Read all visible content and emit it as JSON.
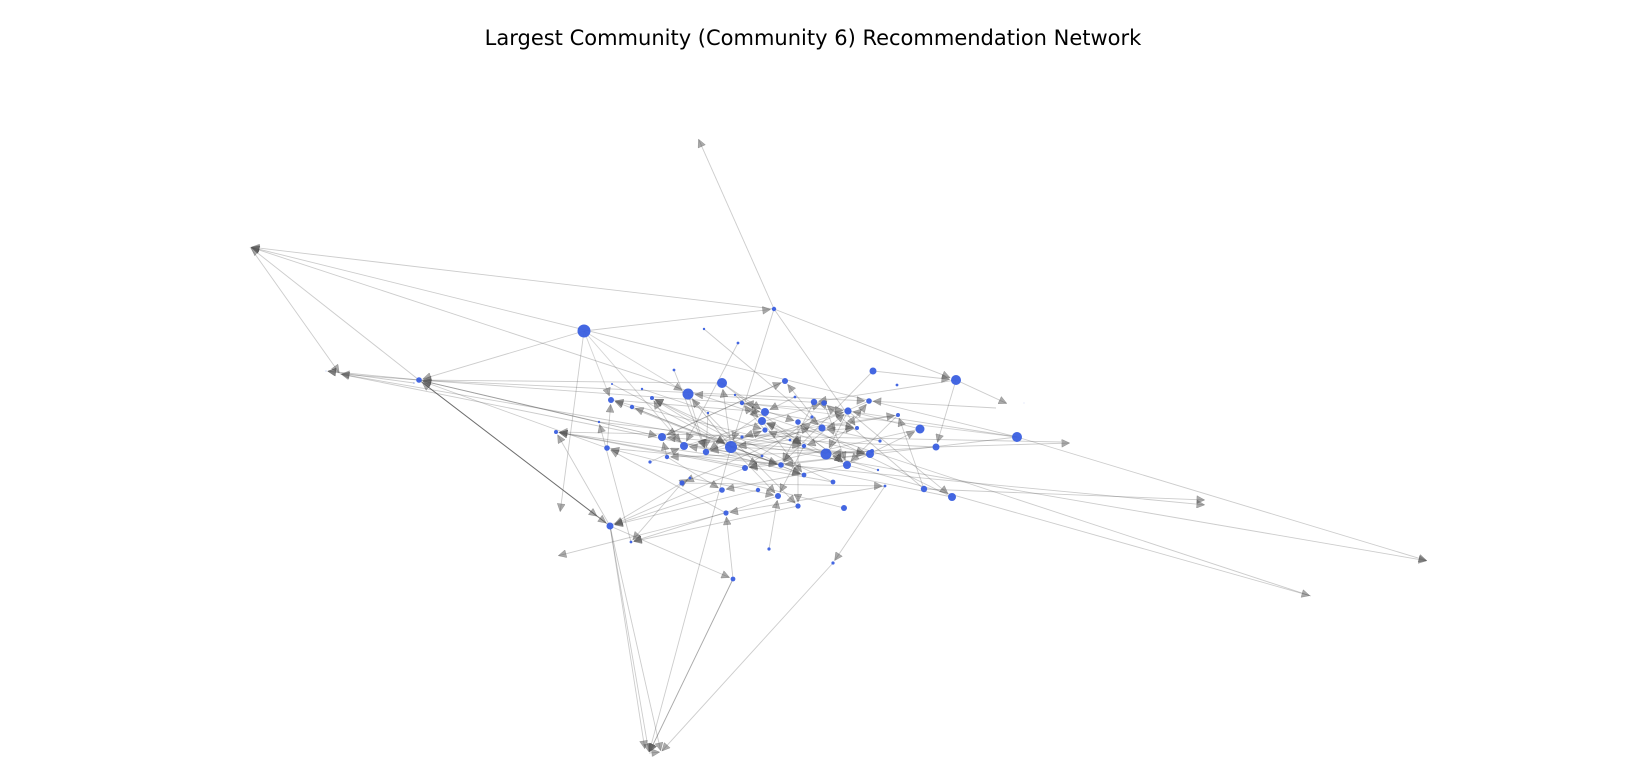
{
  "title": "Largest Community (Community 6) Recommendation Network",
  "colors": {
    "node": "#3a5fe0",
    "edge": "#555555",
    "background": "#ffffff"
  }
}
